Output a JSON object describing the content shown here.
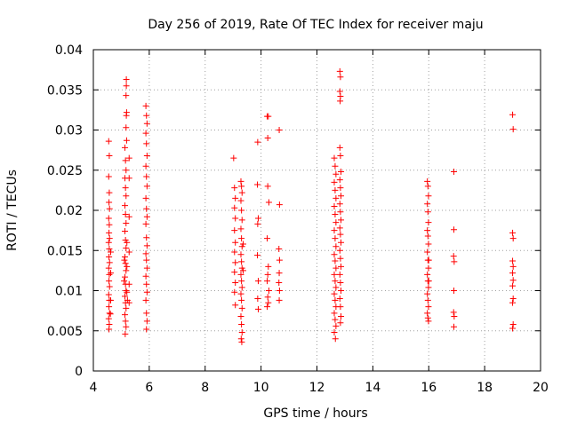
{
  "chart_data": {
    "type": "scatter",
    "title": "Day 256 of 2019, Rate Of TEC Index for receiver maju",
    "xlabel": "GPS time / hours",
    "ylabel": "ROTI / TECUs",
    "xlim": [
      4,
      20
    ],
    "ylim": [
      0,
      0.04
    ],
    "xticks": [
      "4",
      "6",
      "8",
      "10",
      "12",
      "14",
      "16",
      "18",
      "20"
    ],
    "yticks": [
      "0",
      "0.005",
      "0.01",
      "0.015",
      "0.02",
      "0.025",
      "0.03",
      "0.035",
      "0.04"
    ],
    "grid": true,
    "marker": "plus",
    "color": "#ff0000",
    "series": [
      {
        "name": "ROTI",
        "points": [
          [
            4.55,
            0.0286
          ],
          [
            4.57,
            0.0268
          ],
          [
            4.55,
            0.0242
          ],
          [
            4.57,
            0.0222
          ],
          [
            4.56,
            0.021
          ],
          [
            4.58,
            0.0202
          ],
          [
            4.55,
            0.019
          ],
          [
            4.57,
            0.0182
          ],
          [
            4.56,
            0.0172
          ],
          [
            4.58,
            0.0165
          ],
          [
            4.55,
            0.016
          ],
          [
            4.57,
            0.0152
          ],
          [
            4.56,
            0.0142
          ],
          [
            4.58,
            0.0135
          ],
          [
            4.55,
            0.0128
          ],
          [
            4.57,
            0.012
          ],
          [
            4.56,
            0.0112
          ],
          [
            4.58,
            0.0105
          ],
          [
            4.55,
            0.0095
          ],
          [
            4.57,
            0.0088
          ],
          [
            4.56,
            0.008
          ],
          [
            4.58,
            0.0072
          ],
          [
            4.55,
            0.0065
          ],
          [
            4.57,
            0.0058
          ],
          [
            4.56,
            0.0052
          ],
          [
            4.62,
            0.0122
          ],
          [
            4.62,
            0.0148
          ],
          [
            4.62,
            0.0088
          ],
          [
            4.61,
            0.0071
          ],
          [
            5.13,
            0.0278
          ],
          [
            5.15,
            0.0262
          ],
          [
            5.17,
            0.025
          ],
          [
            5.13,
            0.024
          ],
          [
            5.15,
            0.0228
          ],
          [
            5.17,
            0.0218
          ],
          [
            5.13,
            0.0206
          ],
          [
            5.15,
            0.0195
          ],
          [
            5.17,
            0.0184
          ],
          [
            5.13,
            0.0174
          ],
          [
            5.15,
            0.0163
          ],
          [
            5.17,
            0.0153
          ],
          [
            5.13,
            0.0142
          ],
          [
            5.15,
            0.0134
          ],
          [
            5.17,
            0.0125
          ],
          [
            5.13,
            0.0117
          ],
          [
            5.15,
            0.0108
          ],
          [
            5.17,
            0.01
          ],
          [
            5.13,
            0.0093
          ],
          [
            5.15,
            0.0085
          ],
          [
            5.17,
            0.0078
          ],
          [
            5.13,
            0.007
          ],
          [
            5.15,
            0.0062
          ],
          [
            5.17,
            0.0055
          ],
          [
            5.14,
            0.0046
          ],
          [
            5.2,
            0.013
          ],
          [
            5.2,
            0.0098
          ],
          [
            5.2,
            0.016
          ],
          [
            5.1,
            0.0112
          ],
          [
            5.22,
            0.0088
          ],
          [
            5.11,
            0.0138
          ],
          [
            5.18,
            0.0363
          ],
          [
            5.18,
            0.0355
          ],
          [
            5.17,
            0.0343
          ],
          [
            5.19,
            0.0322
          ],
          [
            5.18,
            0.0318
          ],
          [
            5.17,
            0.0303
          ],
          [
            5.19,
            0.0287
          ],
          [
            5.28,
            0.0265
          ],
          [
            5.28,
            0.024
          ],
          [
            5.28,
            0.0192
          ],
          [
            5.28,
            0.0148
          ],
          [
            5.28,
            0.0108
          ],
          [
            5.28,
            0.0085
          ],
          [
            5.88,
            0.033
          ],
          [
            5.9,
            0.0318
          ],
          [
            5.92,
            0.0308
          ],
          [
            5.88,
            0.0296
          ],
          [
            5.9,
            0.0283
          ],
          [
            5.92,
            0.0268
          ],
          [
            5.88,
            0.0255
          ],
          [
            5.9,
            0.0242
          ],
          [
            5.92,
            0.023
          ],
          [
            5.88,
            0.0215
          ],
          [
            5.9,
            0.0202
          ],
          [
            5.92,
            0.0192
          ],
          [
            5.88,
            0.0183
          ],
          [
            5.9,
            0.0166
          ],
          [
            5.92,
            0.0156
          ],
          [
            5.88,
            0.0146
          ],
          [
            5.9,
            0.0138
          ],
          [
            5.92,
            0.0128
          ],
          [
            5.88,
            0.0118
          ],
          [
            5.9,
            0.0108
          ],
          [
            5.92,
            0.0098
          ],
          [
            5.88,
            0.0088
          ],
          [
            5.9,
            0.0072
          ],
          [
            5.92,
            0.0062
          ],
          [
            5.9,
            0.0052
          ],
          [
            9.02,
            0.0265
          ],
          [
            9.05,
            0.0228
          ],
          [
            9.08,
            0.0215
          ],
          [
            9.05,
            0.0203
          ],
          [
            9.08,
            0.019
          ],
          [
            9.05,
            0.0175
          ],
          [
            9.08,
            0.016
          ],
          [
            9.05,
            0.0148
          ],
          [
            9.08,
            0.0135
          ],
          [
            9.05,
            0.0123
          ],
          [
            9.08,
            0.011
          ],
          [
            9.05,
            0.0098
          ],
          [
            9.08,
            0.0082
          ],
          [
            9.28,
            0.0236
          ],
          [
            9.3,
            0.023
          ],
          [
            9.32,
            0.0222
          ],
          [
            9.28,
            0.0212
          ],
          [
            9.3,
            0.02
          ],
          [
            9.32,
            0.0188
          ],
          [
            9.28,
            0.0177
          ],
          [
            9.3,
            0.0165
          ],
          [
            9.32,
            0.0155
          ],
          [
            9.28,
            0.0145
          ],
          [
            9.3,
            0.0136
          ],
          [
            9.32,
            0.0128
          ],
          [
            9.28,
            0.012
          ],
          [
            9.3,
            0.0112
          ],
          [
            9.32,
            0.0104
          ],
          [
            9.28,
            0.0096
          ],
          [
            9.3,
            0.0088
          ],
          [
            9.32,
            0.0078
          ],
          [
            9.28,
            0.0068
          ],
          [
            9.3,
            0.0058
          ],
          [
            9.32,
            0.0048
          ],
          [
            9.29,
            0.004
          ],
          [
            9.31,
            0.0036
          ],
          [
            9.36,
            0.0158
          ],
          [
            9.36,
            0.0125
          ],
          [
            9.88,
            0.0285
          ],
          [
            9.87,
            0.0232
          ],
          [
            9.9,
            0.019
          ],
          [
            9.88,
            0.0183
          ],
          [
            9.87,
            0.0144
          ],
          [
            9.9,
            0.0112
          ],
          [
            9.88,
            0.009
          ],
          [
            9.9,
            0.0077
          ],
          [
            10.22,
            0.0317
          ],
          [
            10.26,
            0.0317
          ],
          [
            10.24,
            0.029
          ],
          [
            10.24,
            0.023
          ],
          [
            10.28,
            0.021
          ],
          [
            10.22,
            0.0165
          ],
          [
            10.26,
            0.013
          ],
          [
            10.24,
            0.012
          ],
          [
            10.22,
            0.0112
          ],
          [
            10.28,
            0.01
          ],
          [
            10.24,
            0.0092
          ],
          [
            10.26,
            0.0085
          ],
          [
            10.22,
            0.008
          ],
          [
            10.65,
            0.03
          ],
          [
            10.66,
            0.0207
          ],
          [
            10.64,
            0.0152
          ],
          [
            10.66,
            0.0138
          ],
          [
            10.65,
            0.0122
          ],
          [
            10.64,
            0.011
          ],
          [
            10.66,
            0.01
          ],
          [
            10.65,
            0.0088
          ],
          [
            12.62,
            0.0265
          ],
          [
            12.65,
            0.0255
          ],
          [
            12.68,
            0.0245
          ],
          [
            12.62,
            0.0235
          ],
          [
            12.65,
            0.0225
          ],
          [
            12.68,
            0.0215
          ],
          [
            12.62,
            0.0205
          ],
          [
            12.65,
            0.0195
          ],
          [
            12.68,
            0.0185
          ],
          [
            12.62,
            0.0175
          ],
          [
            12.65,
            0.0165
          ],
          [
            12.68,
            0.0155
          ],
          [
            12.62,
            0.0145
          ],
          [
            12.65,
            0.0137
          ],
          [
            12.68,
            0.0128
          ],
          [
            12.62,
            0.012
          ],
          [
            12.65,
            0.0112
          ],
          [
            12.68,
            0.0104
          ],
          [
            12.62,
            0.0096
          ],
          [
            12.65,
            0.0088
          ],
          [
            12.68,
            0.008
          ],
          [
            12.62,
            0.0072
          ],
          [
            12.65,
            0.0064
          ],
          [
            12.68,
            0.0056
          ],
          [
            12.62,
            0.0048
          ],
          [
            12.66,
            0.004
          ],
          [
            12.82,
            0.0373
          ],
          [
            12.84,
            0.0366
          ],
          [
            12.82,
            0.0348
          ],
          [
            12.84,
            0.0342
          ],
          [
            12.83,
            0.0336
          ],
          [
            12.82,
            0.0278
          ],
          [
            12.84,
            0.0268
          ],
          [
            12.86,
            0.0248
          ],
          [
            12.82,
            0.0238
          ],
          [
            12.84,
            0.0228
          ],
          [
            12.86,
            0.0218
          ],
          [
            12.82,
            0.0208
          ],
          [
            12.84,
            0.0198
          ],
          [
            12.86,
            0.0188
          ],
          [
            12.82,
            0.0178
          ],
          [
            12.84,
            0.017
          ],
          [
            12.86,
            0.016
          ],
          [
            12.82,
            0.015
          ],
          [
            12.84,
            0.014
          ],
          [
            12.86,
            0.013
          ],
          [
            12.82,
            0.012
          ],
          [
            12.84,
            0.011
          ],
          [
            12.86,
            0.01
          ],
          [
            12.82,
            0.009
          ],
          [
            12.84,
            0.008
          ],
          [
            12.86,
            0.0068
          ],
          [
            12.84,
            0.006
          ],
          [
            15.95,
            0.0236
          ],
          [
            15.97,
            0.023
          ],
          [
            15.99,
            0.0218
          ],
          [
            15.95,
            0.0208
          ],
          [
            15.97,
            0.0198
          ],
          [
            15.99,
            0.0185
          ],
          [
            15.95,
            0.0175
          ],
          [
            15.97,
            0.0168
          ],
          [
            15.99,
            0.0158
          ],
          [
            15.95,
            0.0148
          ],
          [
            15.97,
            0.0138
          ],
          [
            15.99,
            0.0128
          ],
          [
            15.95,
            0.012
          ],
          [
            15.97,
            0.0112
          ],
          [
            15.99,
            0.0104
          ],
          [
            15.95,
            0.0096
          ],
          [
            15.97,
            0.0088
          ],
          [
            15.99,
            0.008
          ],
          [
            15.95,
            0.0072
          ],
          [
            15.97,
            0.0066
          ],
          [
            15.99,
            0.0062
          ],
          [
            16.0,
            0.0138
          ],
          [
            16.0,
            0.0112
          ],
          [
            16.9,
            0.0248
          ],
          [
            16.9,
            0.0176
          ],
          [
            16.89,
            0.0143
          ],
          [
            16.91,
            0.0136
          ],
          [
            16.9,
            0.01
          ],
          [
            16.89,
            0.0073
          ],
          [
            16.91,
            0.0068
          ],
          [
            16.9,
            0.0055
          ],
          [
            19.0,
            0.0319
          ],
          [
            19.02,
            0.0301
          ],
          [
            19.0,
            0.0172
          ],
          [
            19.02,
            0.0165
          ],
          [
            19.0,
            0.0137
          ],
          [
            19.02,
            0.013
          ],
          [
            19.0,
            0.0122
          ],
          [
            19.02,
            0.0113
          ],
          [
            19.0,
            0.0106
          ],
          [
            19.02,
            0.009
          ],
          [
            19.0,
            0.0085
          ],
          [
            19.02,
            0.0058
          ],
          [
            19.0,
            0.0053
          ]
        ]
      }
    ]
  }
}
